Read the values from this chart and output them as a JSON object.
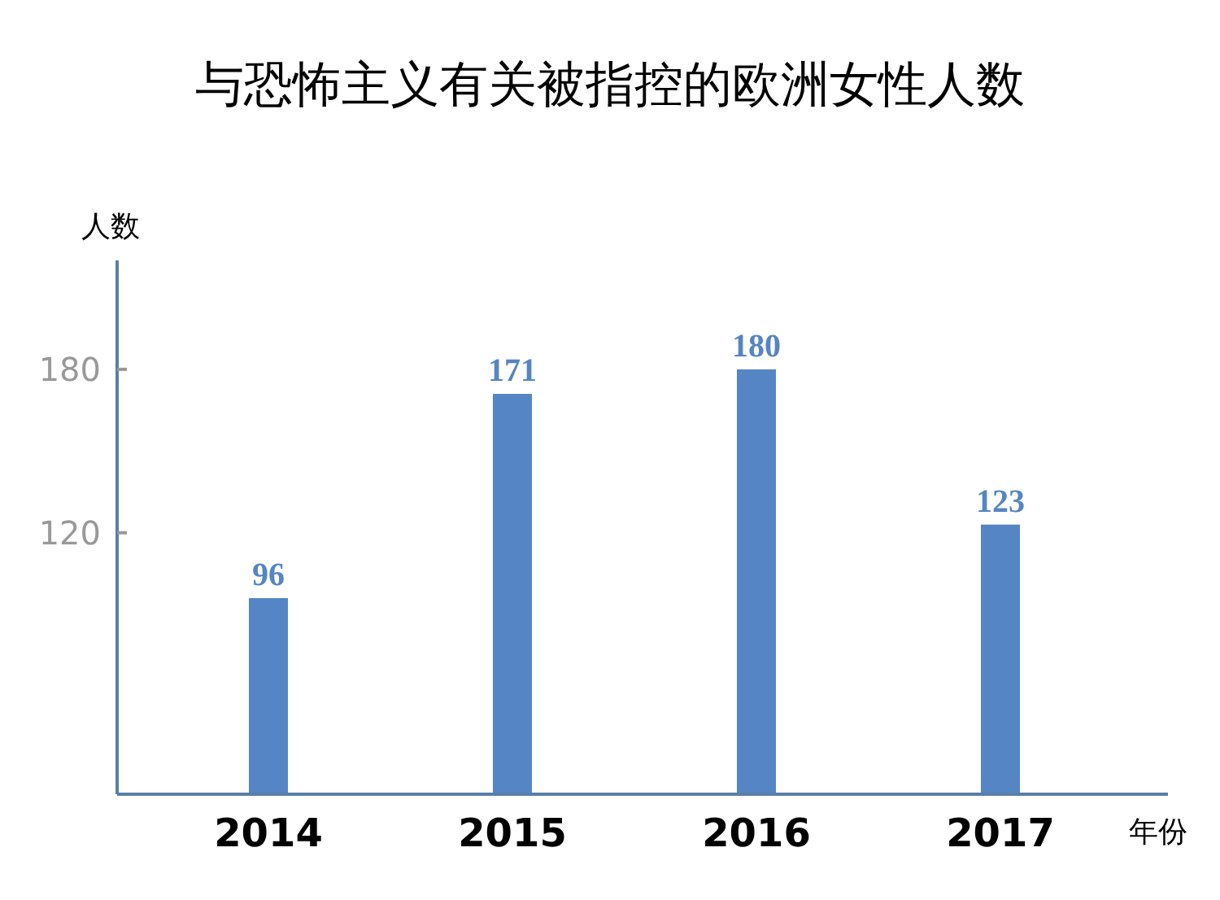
{
  "chart_data": {
    "type": "bar",
    "title": "与恐怖主义有关被指控的欧洲女性人数",
    "ylabel": "人数",
    "xlabel": "年份",
    "categories": [
      "2014",
      "2015",
      "2016",
      "2017"
    ],
    "values": [
      96,
      171,
      180,
      123
    ],
    "color": "#5585c4",
    "ylim": [
      24,
      220
    ],
    "yticks": [
      120,
      180
    ],
    "data_labels": true,
    "grid": false
  }
}
